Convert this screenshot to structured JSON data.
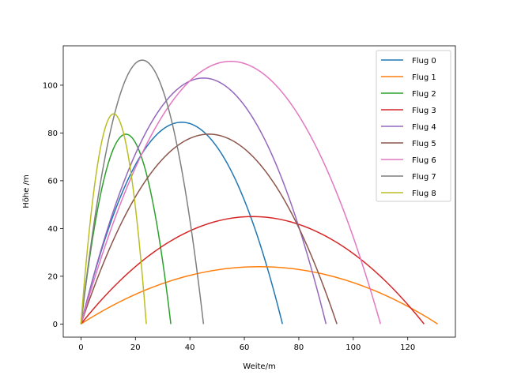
{
  "chart_data": {
    "type": "line",
    "title": "",
    "xlabel": "Weite/m",
    "ylabel": "Höhe /m",
    "xlim": [
      -6.5,
      137.5
    ],
    "ylim": [
      -5.5,
      116.5
    ],
    "xticks": [
      0,
      20,
      40,
      60,
      80,
      100,
      120
    ],
    "yticks": [
      0,
      20,
      40,
      60,
      80,
      100
    ],
    "grid": false,
    "legend_position": "top-right",
    "series": [
      {
        "name": "Flug 0",
        "color": "#1f77b4",
        "range": 74,
        "peak": 84.5
      },
      {
        "name": "Flug 1",
        "color": "#ff7f0e",
        "range": 131,
        "peak": 24
      },
      {
        "name": "Flug 2",
        "color": "#2ca02c",
        "range": 33,
        "peak": 79.5
      },
      {
        "name": "Flug 3",
        "color": "#d62728",
        "range": 126,
        "peak": 45
      },
      {
        "name": "Flug 4",
        "color": "#9467bd",
        "range": 90,
        "peak": 103
      },
      {
        "name": "Flug 5",
        "color": "#8c564b",
        "range": 94,
        "peak": 79.5
      },
      {
        "name": "Flug 6",
        "color": "#e377c2",
        "range": 110,
        "peak": 110
      },
      {
        "name": "Flug 7",
        "color": "#7f7f7f",
        "range": 45,
        "peak": 110.5
      },
      {
        "name": "Flug 8",
        "color": "#bcbd22",
        "range": 24,
        "peak": 88
      }
    ]
  }
}
